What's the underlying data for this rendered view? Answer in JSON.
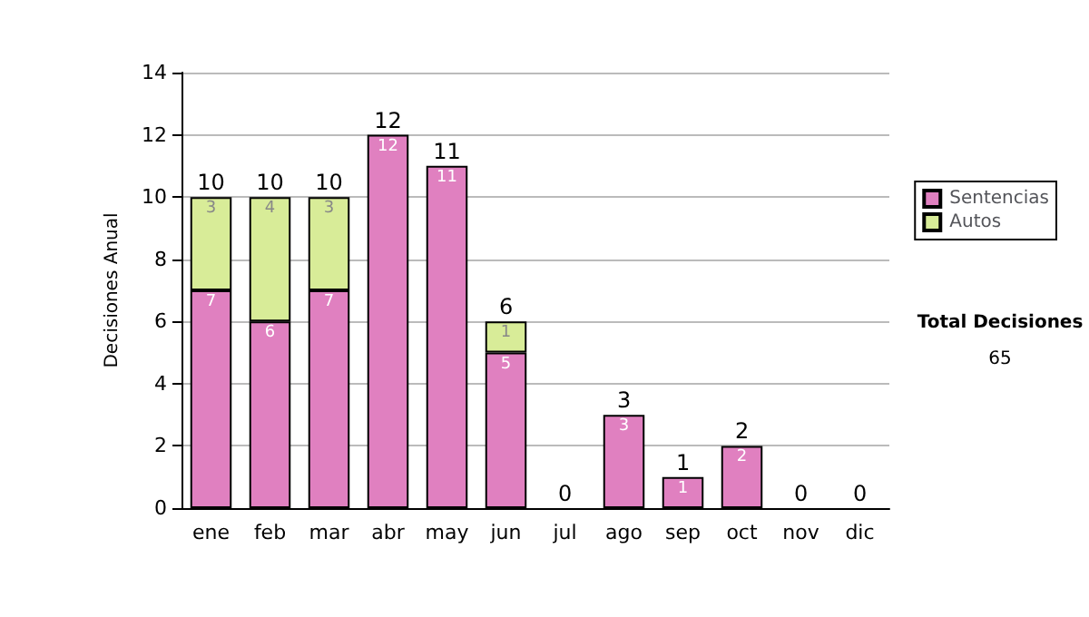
{
  "chart_data": {
    "type": "bar",
    "stacked": true,
    "ylabel": "Decisiones Anual",
    "categories": [
      "ene",
      "feb",
      "mar",
      "abr",
      "may",
      "jun",
      "jul",
      "ago",
      "sep",
      "oct",
      "nov",
      "dic"
    ],
    "series": [
      {
        "name": "Sentencias",
        "color": "#e080c0",
        "values": [
          7,
          6,
          7,
          12,
          11,
          5,
          0,
          3,
          1,
          2,
          0,
          0
        ],
        "value_labels": [
          "7",
          "6",
          "7",
          "12",
          "11",
          "5",
          null,
          "3",
          "1",
          "2",
          null,
          null
        ]
      },
      {
        "name": "Autos",
        "color": "#d8ec98",
        "values": [
          3,
          4,
          3,
          0,
          0,
          1,
          0,
          0,
          0,
          0,
          0,
          0
        ],
        "value_labels": [
          "3",
          "4",
          "3",
          null,
          null,
          "1",
          null,
          null,
          null,
          null,
          null,
          null
        ]
      }
    ],
    "totals": [
      "10",
      "10",
      "10",
      "12",
      "11",
      "6",
      "0",
      "3",
      "1",
      "2",
      "0",
      "0"
    ],
    "ylim": [
      0,
      14
    ],
    "yticks": [
      0,
      2,
      4,
      6,
      8,
      10,
      12,
      14
    ],
    "grid": "y",
    "legend": "right",
    "annotations": [
      "Total Decisiones",
      "65"
    ]
  }
}
